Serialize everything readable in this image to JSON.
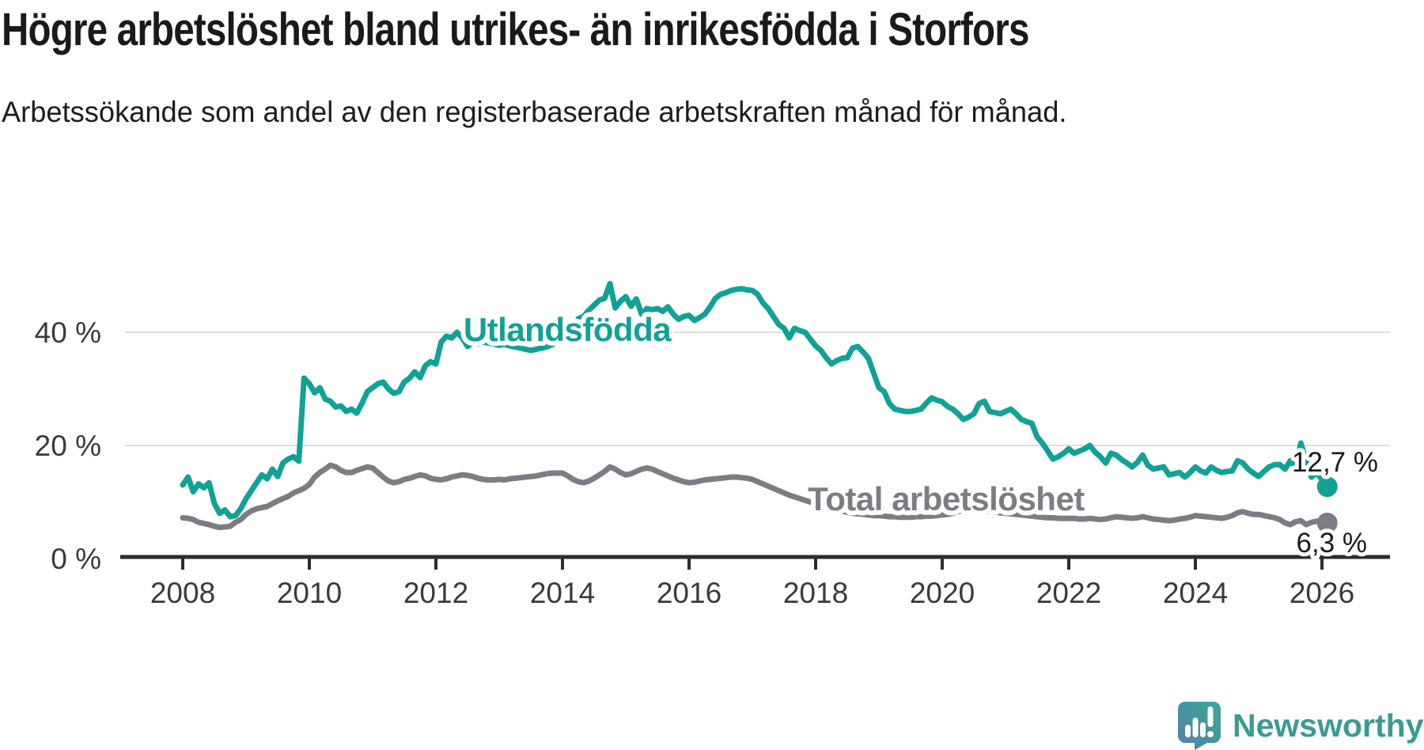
{
  "header": {
    "title": "Högre arbetslöshet bland utrikes- än inrikesfödda i Storfors",
    "subtitle": "Arbetssökande som andel av den registerbaserade arbetskraften månad för månad."
  },
  "footer": {
    "brand": "Newsworthy"
  },
  "colors": {
    "accent_teal": "#10a295",
    "series_gray": "#7c7c82",
    "axis": "#2d2d2d",
    "gridline": "#dedede",
    "text_dark": "#1a1a1a",
    "logo_teal": "#3a9b91"
  },
  "chart_data": {
    "type": "line",
    "title": "Högre arbetslöshet bland utrikes- än inrikesfödda i Storfors",
    "subtitle": "Arbetssökande som andel av den registerbaserade arbetskraften månad för månad.",
    "x_axis": {
      "unit": "month",
      "start": "2008-01",
      "end": "2026-02",
      "ticks": [
        2008,
        2010,
        2012,
        2014,
        2016,
        2018,
        2020,
        2022,
        2024,
        2026
      ]
    },
    "y_axis": {
      "unit": "%",
      "range": [
        0,
        50
      ],
      "grid": true,
      "ticks": [
        {
          "value": 0,
          "label": "0 %"
        },
        {
          "value": 20,
          "label": "20 %"
        },
        {
          "value": 40,
          "label": "40 %"
        }
      ]
    },
    "legend_position": "inline-labels",
    "series": [
      {
        "name": "Utlandsfödda",
        "color": "#10a295",
        "end_value": 12.7,
        "end_label": "12,7 %",
        "values": [
          13.0,
          14.4,
          11.8,
          13.2,
          12.5,
          13.4,
          9.7,
          8.0,
          8.6,
          7.4,
          7.6,
          8.8,
          10.6,
          12.0,
          13.4,
          14.8,
          14.1,
          15.8,
          14.5,
          16.9,
          17.6,
          18.0,
          17.2,
          31.9,
          30.9,
          29.3,
          30.2,
          28.2,
          27.8,
          26.8,
          27.0,
          26.0,
          26.4,
          25.7,
          27.5,
          29.5,
          30.2,
          30.9,
          31.2,
          30.0,
          29.2,
          29.5,
          31.2,
          31.9,
          33.0,
          32.0,
          34.1,
          34.8,
          34.4,
          38.3,
          39.3,
          39.0,
          40.0,
          39.0,
          37.5,
          38.2,
          38.0,
          38.3,
          38.1,
          37.9,
          37.7,
          37.9,
          37.6,
          37.4,
          37.2,
          37.0,
          36.8,
          37.0,
          37.2,
          37.4,
          37.8,
          38.4,
          39.0,
          40.2,
          41.0,
          42.4,
          42.8,
          43.9,
          44.8,
          45.7,
          46.0,
          48.6,
          44.3,
          45.5,
          46.3,
          44.6,
          45.9,
          43.2,
          44.2,
          44.0,
          44.2,
          43.7,
          44.5,
          43.2,
          42.3,
          42.8,
          43.0,
          42.1,
          42.6,
          43.2,
          44.5,
          46.0,
          46.7,
          47.0,
          47.4,
          47.6,
          47.7,
          47.5,
          47.4,
          46.7,
          45.2,
          44.2,
          42.8,
          41.4,
          40.7,
          39.0,
          40.7,
          40.3,
          40.0,
          38.8,
          37.6,
          36.8,
          35.5,
          34.4,
          35.0,
          35.4,
          35.5,
          37.2,
          37.5,
          36.5,
          35.4,
          32.8,
          30.2,
          29.5,
          27.4,
          26.4,
          26.2,
          26.0,
          26.0,
          26.2,
          26.4,
          27.5,
          28.4,
          28.0,
          27.7,
          26.9,
          26.4,
          25.6,
          24.6,
          25.0,
          25.6,
          27.4,
          27.8,
          26.0,
          25.8,
          25.6,
          26.0,
          26.4,
          25.6,
          24.6,
          24.2,
          23.9,
          21.5,
          20.4,
          19.0,
          17.6,
          18.0,
          18.6,
          19.4,
          18.6,
          19.0,
          19.4,
          20.0,
          18.8,
          18.0,
          16.9,
          18.6,
          18.3,
          17.5,
          16.9,
          16.2,
          17.0,
          18.3,
          16.5,
          15.8,
          16.0,
          16.2,
          14.8,
          15.0,
          15.2,
          14.4,
          15.2,
          16.2,
          15.5,
          15.1,
          16.2,
          15.6,
          15.2,
          15.4,
          15.5,
          17.3,
          16.9,
          15.8,
          15.1,
          14.5,
          15.4,
          16.2,
          16.6,
          16.6,
          15.8,
          17.3,
          16.0,
          20.4,
          17.3,
          14.4,
          15.1,
          14.0,
          12.7
        ]
      },
      {
        "name": "Total arbetslöshet",
        "color": "#7c7c82",
        "end_value": 6.3,
        "end_label": "6,3 %",
        "values": [
          7.2,
          7.1,
          6.9,
          6.4,
          6.2,
          6.0,
          5.7,
          5.5,
          5.6,
          5.7,
          6.4,
          6.9,
          7.8,
          8.4,
          8.8,
          9.0,
          9.2,
          9.7,
          10.2,
          10.6,
          11.0,
          11.6,
          12.0,
          12.4,
          13.1,
          14.4,
          15.2,
          15.8,
          16.5,
          16.2,
          15.6,
          15.2,
          15.2,
          15.6,
          15.9,
          16.2,
          16.0,
          15.2,
          14.4,
          13.7,
          13.4,
          13.6,
          14.0,
          14.2,
          14.5,
          14.8,
          14.6,
          14.2,
          14.0,
          13.9,
          14.1,
          14.4,
          14.6,
          14.8,
          14.7,
          14.5,
          14.2,
          14.0,
          13.9,
          13.9,
          14.0,
          13.9,
          14.1,
          14.2,
          14.3,
          14.4,
          14.5,
          14.6,
          14.8,
          15.0,
          15.1,
          15.1,
          15.1,
          14.6,
          14.0,
          13.6,
          13.4,
          13.7,
          14.2,
          14.8,
          15.4,
          16.2,
          15.8,
          15.2,
          14.8,
          15.0,
          15.4,
          15.8,
          16.0,
          15.8,
          15.4,
          15.0,
          14.6,
          14.2,
          13.9,
          13.6,
          13.4,
          13.5,
          13.7,
          13.9,
          14.0,
          14.1,
          14.2,
          14.3,
          14.4,
          14.4,
          14.3,
          14.2,
          14.0,
          13.6,
          13.2,
          12.8,
          12.4,
          12.0,
          11.6,
          11.2,
          10.9,
          10.6,
          10.3,
          10.0,
          9.7,
          9.4,
          9.1,
          8.8,
          8.6,
          8.4,
          8.2,
          8.0,
          7.9,
          7.8,
          7.7,
          7.6,
          7.6,
          7.5,
          7.4,
          7.4,
          7.3,
          7.3,
          7.3,
          7.4,
          7.4,
          7.5,
          7.5,
          7.6,
          7.7,
          7.8,
          8.0,
          8.3,
          8.5,
          8.6,
          8.6,
          8.5,
          8.4,
          8.3,
          8.2,
          8.1,
          8.0,
          7.9,
          7.8,
          7.7,
          7.6,
          7.5,
          7.4,
          7.3,
          7.2,
          7.2,
          7.1,
          7.1,
          7.1,
          7.1,
          7.0,
          7.0,
          7.1,
          7.0,
          6.9,
          7.0,
          7.2,
          7.4,
          7.3,
          7.2,
          7.1,
          7.2,
          7.4,
          7.2,
          7.0,
          6.9,
          6.8,
          6.7,
          6.8,
          7.0,
          7.1,
          7.3,
          7.6,
          7.5,
          7.4,
          7.3,
          7.2,
          7.1,
          7.3,
          7.6,
          8.1,
          8.3,
          8.0,
          7.8,
          7.8,
          7.6,
          7.4,
          7.2,
          6.9,
          6.3,
          6.0,
          6.5,
          6.7,
          6.0,
          6.4,
          6.6,
          6.5,
          6.3
        ]
      }
    ]
  }
}
